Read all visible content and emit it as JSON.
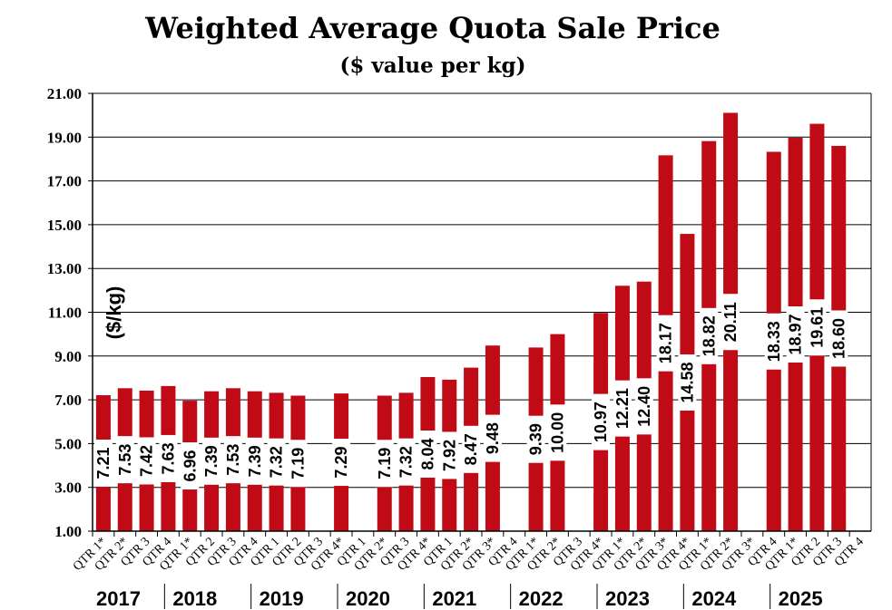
{
  "chart_data": {
    "type": "bar",
    "title": "Weighted Average Quota Sale Price",
    "subtitle": "($ value per kg)",
    "xlabel": "",
    "ylabel": "($/kg)",
    "ylim": [
      1,
      21
    ],
    "yticks": [
      "1.00",
      "3.00",
      "5.00",
      "7.00",
      "9.00",
      "11.00",
      "13.00",
      "15.00",
      "17.00",
      "19.00",
      "21.00"
    ],
    "grid": true,
    "color": "#C00A16",
    "categories": [
      "QTR 1*",
      "QTR 2*",
      "QTR 3",
      "QTR 4",
      "QTR 1*",
      "QTR 2",
      "QTR 3",
      "QTR 4",
      "QTR 1",
      "QTR 2",
      "QTR 3",
      "QTR 4*",
      "QTR 1",
      "QTR 2*",
      "QTR 3",
      "QTR 4*",
      "QTR 1",
      "QTR 2*",
      "QTR 3*",
      "QTR 4",
      "QTR 1*",
      "QTR 2*",
      "QTR 3",
      "QTR 4*",
      "QTR 1*",
      "QTR 2*",
      "QTR 3*",
      "QTR 4*",
      "QTR 1*",
      "QTR 2*",
      "QTR 3*",
      "QTR 4",
      "QTR 1*",
      "QTR 2",
      "QTR 3",
      "QTR 4"
    ],
    "values": [
      7.21,
      7.53,
      7.42,
      7.63,
      6.96,
      7.39,
      7.53,
      7.39,
      7.32,
      7.19,
      null,
      7.29,
      null,
      7.19,
      7.32,
      8.04,
      7.92,
      8.47,
      9.48,
      null,
      9.39,
      10.0,
      null,
      10.97,
      12.21,
      12.4,
      18.17,
      14.58,
      18.82,
      20.11,
      null,
      18.33,
      18.97,
      19.61,
      18.6,
      null
    ],
    "value_labels": [
      "7.21",
      "7.53",
      "7.42",
      "7.63",
      "6.96",
      "7.39",
      "7.53",
      "7.39",
      "7.32",
      "7.19",
      "",
      "7.29",
      "",
      "7.19",
      "7.32",
      "8.04",
      "7.92",
      "8.47",
      "9.48",
      "",
      "9.39",
      "10.00",
      "",
      "10.97",
      "12.21",
      "12.40",
      "18.17",
      "14.58",
      "18.82",
      "20.11",
      "",
      "18.33",
      "18.97",
      "19.61",
      "18.60",
      ""
    ],
    "years": [
      {
        "label": "2017",
        "start": 0
      },
      {
        "label": "2018",
        "start": 4
      },
      {
        "label": "2019",
        "start": 8
      },
      {
        "label": "2020",
        "start": 12
      },
      {
        "label": "2021",
        "start": 16
      },
      {
        "label": "2022",
        "start": 20
      },
      {
        "label": "2023",
        "start": 24
      },
      {
        "label": "2024",
        "start": 28
      },
      {
        "label": "2025",
        "start": 32
      }
    ]
  }
}
